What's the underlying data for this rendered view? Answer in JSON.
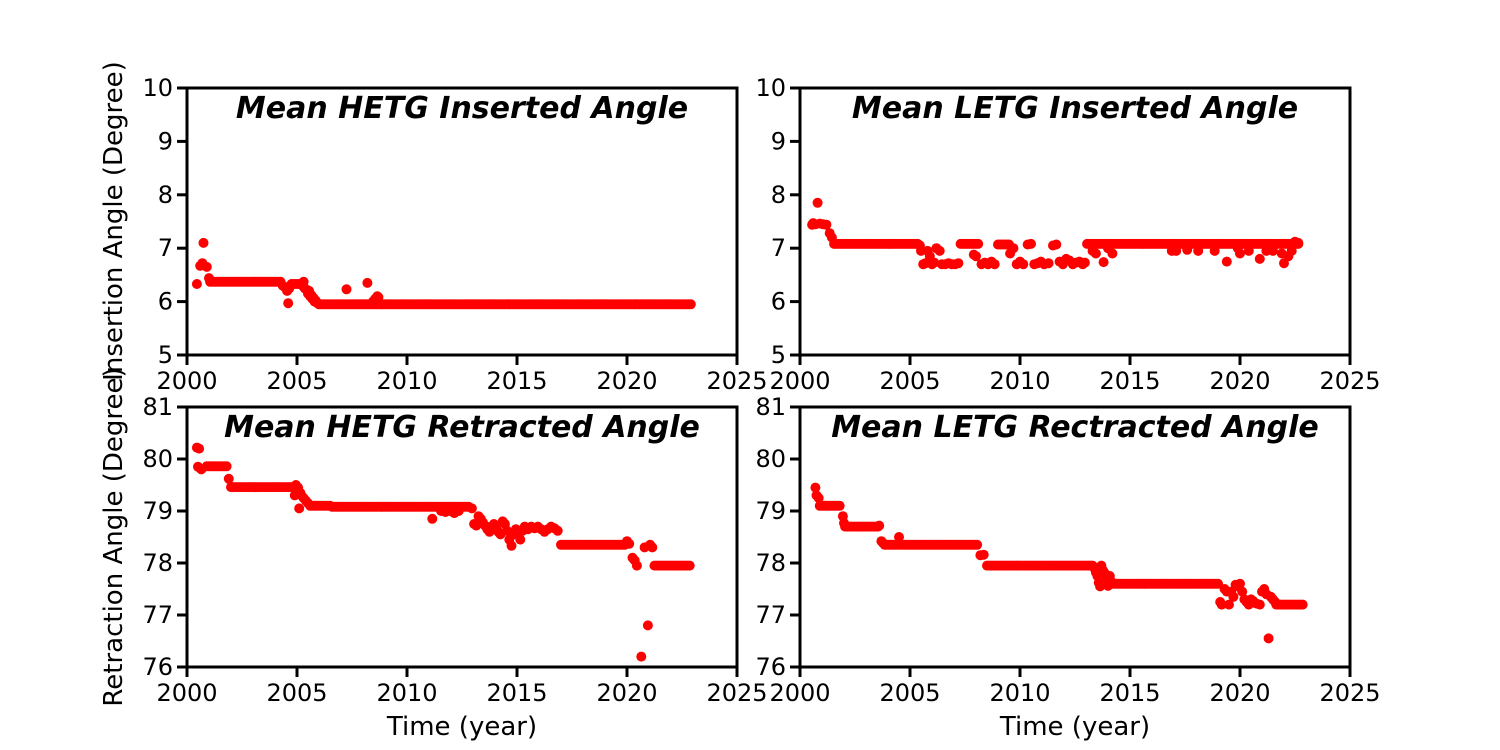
{
  "figure": {
    "background": "#ffffff",
    "axis_color": "#000000",
    "marker_color": "#ff0000",
    "runs_format": "[x_start, x_end, y] constant-y dense dot segments"
  },
  "chart_data": [
    {
      "id": "hetg-inserted",
      "type": "scatter",
      "title": "Mean HETG Inserted Angle",
      "xlabel": "",
      "ylabel": "Insertion Angle (Degree)",
      "xlim": [
        2000,
        2025
      ],
      "ylim": [
        5,
        10
      ],
      "xticks": [
        2000,
        2005,
        2010,
        2015,
        2020,
        2025
      ],
      "yticks": [
        5,
        6,
        7,
        8,
        9,
        10
      ],
      "grid": false,
      "marker": {
        "shape": "circle",
        "color": "#ff0000",
        "radius_px": 5
      },
      "series": {
        "name": "mean HETG inserted angle",
        "runs": [
          [
            2001.05,
            2004.25,
            6.37
          ],
          [
            2004.75,
            2005.2,
            6.33
          ],
          [
            2006.0,
            2022.9,
            5.95
          ]
        ],
        "points": [
          [
            2000.45,
            6.33
          ],
          [
            2000.6,
            6.67
          ],
          [
            2000.7,
            6.72
          ],
          [
            2000.75,
            7.1
          ],
          [
            2000.9,
            6.65
          ],
          [
            2001.0,
            6.44
          ],
          [
            2004.35,
            6.3
          ],
          [
            2004.45,
            6.27
          ],
          [
            2004.55,
            6.2
          ],
          [
            2004.6,
            5.97
          ],
          [
            2004.65,
            6.25
          ],
          [
            2005.25,
            6.3
          ],
          [
            2005.3,
            6.37
          ],
          [
            2005.35,
            6.25
          ],
          [
            2005.45,
            6.22
          ],
          [
            2005.5,
            6.15
          ],
          [
            2005.55,
            6.2
          ],
          [
            2005.6,
            6.1
          ],
          [
            2005.65,
            6.12
          ],
          [
            2005.7,
            6.05
          ],
          [
            2005.75,
            6.07
          ],
          [
            2005.8,
            6.0
          ],
          [
            2005.85,
            6.02
          ],
          [
            2005.9,
            5.98
          ],
          [
            2007.25,
            6.23
          ],
          [
            2008.2,
            6.35
          ],
          [
            2008.45,
            6.0
          ],
          [
            2008.55,
            6.05
          ],
          [
            2008.65,
            6.1
          ],
          [
            2008.7,
            6.08
          ]
        ]
      }
    },
    {
      "id": "letg-inserted",
      "type": "scatter",
      "title": "Mean LETG Inserted Angle",
      "xlabel": "",
      "ylabel": "",
      "xlim": [
        2000,
        2025
      ],
      "ylim": [
        5,
        10
      ],
      "xticks": [
        2000,
        2005,
        2010,
        2015,
        2020,
        2025
      ],
      "yticks": [
        5,
        6,
        7,
        8,
        9,
        10
      ],
      "grid": false,
      "marker": {
        "shape": "circle",
        "color": "#ff0000",
        "radius_px": 5
      },
      "series": {
        "name": "mean LETG inserted angle",
        "runs": [
          [
            2001.55,
            2005.35,
            7.08
          ],
          [
            2007.3,
            2008.15,
            7.08
          ],
          [
            2009.0,
            2009.5,
            7.07
          ],
          [
            2013.05,
            2022.7,
            7.08
          ]
        ],
        "points": [
          [
            2000.55,
            7.44
          ],
          [
            2000.6,
            7.47
          ],
          [
            2000.7,
            7.45
          ],
          [
            2000.8,
            7.85
          ],
          [
            2000.9,
            7.46
          ],
          [
            2001.05,
            7.45
          ],
          [
            2001.2,
            7.44
          ],
          [
            2001.35,
            7.28
          ],
          [
            2001.45,
            7.2
          ],
          [
            2005.45,
            7.05
          ],
          [
            2005.5,
            6.95
          ],
          [
            2005.6,
            6.7
          ],
          [
            2005.7,
            6.72
          ],
          [
            2005.8,
            6.95
          ],
          [
            2005.9,
            6.85
          ],
          [
            2006.0,
            6.7
          ],
          [
            2006.1,
            6.73
          ],
          [
            2006.2,
            7.0
          ],
          [
            2006.35,
            6.95
          ],
          [
            2006.45,
            6.7
          ],
          [
            2006.6,
            6.7
          ],
          [
            2006.75,
            6.72
          ],
          [
            2006.9,
            6.7
          ],
          [
            2007.05,
            6.7
          ],
          [
            2007.2,
            6.72
          ],
          [
            2007.9,
            6.88
          ],
          [
            2008.0,
            6.85
          ],
          [
            2008.25,
            6.7
          ],
          [
            2008.4,
            6.73
          ],
          [
            2008.55,
            6.7
          ],
          [
            2008.7,
            6.75
          ],
          [
            2008.85,
            6.7
          ],
          [
            2009.55,
            6.9
          ],
          [
            2009.7,
            7.0
          ],
          [
            2009.85,
            6.7
          ],
          [
            2010.0,
            6.75
          ],
          [
            2010.15,
            6.7
          ],
          [
            2010.35,
            7.07
          ],
          [
            2010.5,
            7.08
          ],
          [
            2010.65,
            6.7
          ],
          [
            2010.8,
            6.72
          ],
          [
            2010.95,
            6.75
          ],
          [
            2011.1,
            6.7
          ],
          [
            2011.3,
            6.72
          ],
          [
            2011.5,
            7.05
          ],
          [
            2011.65,
            7.07
          ],
          [
            2011.8,
            6.75
          ],
          [
            2011.95,
            6.7
          ],
          [
            2012.1,
            6.8
          ],
          [
            2012.25,
            6.77
          ],
          [
            2012.4,
            6.7
          ],
          [
            2012.55,
            6.73
          ],
          [
            2012.7,
            6.75
          ],
          [
            2012.85,
            6.7
          ],
          [
            2012.95,
            6.73
          ],
          [
            2013.3,
            6.95
          ],
          [
            2013.45,
            6.9
          ],
          [
            2013.8,
            6.74
          ],
          [
            2014.0,
            7.0
          ],
          [
            2014.2,
            6.9
          ],
          [
            2016.9,
            6.95
          ],
          [
            2017.1,
            6.95
          ],
          [
            2017.6,
            6.97
          ],
          [
            2018.1,
            6.95
          ],
          [
            2018.85,
            6.95
          ],
          [
            2019.4,
            6.75
          ],
          [
            2019.9,
            7.0
          ],
          [
            2020.0,
            6.9
          ],
          [
            2020.4,
            6.95
          ],
          [
            2020.9,
            6.8
          ],
          [
            2021.2,
            6.95
          ],
          [
            2021.5,
            6.95
          ],
          [
            2021.9,
            6.9
          ],
          [
            2022.0,
            6.72
          ],
          [
            2022.2,
            6.85
          ],
          [
            2022.35,
            6.95
          ],
          [
            2022.5,
            7.12
          ],
          [
            2022.65,
            7.1
          ]
        ]
      }
    },
    {
      "id": "hetg-retracted",
      "type": "scatter",
      "title": "Mean HETG Retracted Angle",
      "xlabel": "Time (year)",
      "ylabel": "Retraction Angle (Degree)",
      "xlim": [
        2000,
        2025
      ],
      "ylim": [
        76,
        81
      ],
      "xticks": [
        2000,
        2005,
        2010,
        2015,
        2020,
        2025
      ],
      "yticks": [
        76,
        77,
        78,
        79,
        80,
        81
      ],
      "grid": false,
      "marker": {
        "shape": "circle",
        "color": "#ff0000",
        "radius_px": 5
      },
      "series": {
        "name": "mean HETG retracted angle",
        "runs": [
          [
            2000.9,
            2001.85,
            79.86
          ],
          [
            2002.0,
            2004.85,
            79.46
          ],
          [
            2005.6,
            2006.55,
            79.1
          ],
          [
            2006.6,
            2012.85,
            79.08
          ],
          [
            2017.0,
            2019.9,
            78.35
          ],
          [
            2021.25,
            2022.9,
            77.95
          ]
        ],
        "points": [
          [
            2000.45,
            80.22
          ],
          [
            2000.55,
            80.2
          ],
          [
            2000.5,
            79.85
          ],
          [
            2000.65,
            79.8
          ],
          [
            2001.9,
            79.62
          ],
          [
            2004.9,
            79.3
          ],
          [
            2004.95,
            79.5
          ],
          [
            2005.05,
            79.45
          ],
          [
            2005.1,
            79.05
          ],
          [
            2005.15,
            79.35
          ],
          [
            2005.2,
            79.3
          ],
          [
            2005.3,
            79.25
          ],
          [
            2005.4,
            79.2
          ],
          [
            2005.5,
            79.15
          ],
          [
            2011.15,
            78.85
          ],
          [
            2011.55,
            79.0
          ],
          [
            2011.75,
            78.98
          ],
          [
            2011.95,
            79.0
          ],
          [
            2012.15,
            78.96
          ],
          [
            2012.35,
            79.0
          ],
          [
            2012.95,
            79.05
          ],
          [
            2013.05,
            78.75
          ],
          [
            2013.15,
            78.72
          ],
          [
            2013.25,
            78.9
          ],
          [
            2013.35,
            78.85
          ],
          [
            2013.45,
            78.78
          ],
          [
            2013.55,
            78.72
          ],
          [
            2013.65,
            78.65
          ],
          [
            2013.75,
            78.6
          ],
          [
            2013.85,
            78.7
          ],
          [
            2013.95,
            78.75
          ],
          [
            2014.05,
            78.68
          ],
          [
            2014.15,
            78.6
          ],
          [
            2014.25,
            78.55
          ],
          [
            2014.35,
            78.8
          ],
          [
            2014.45,
            78.75
          ],
          [
            2014.55,
            78.62
          ],
          [
            2014.65,
            78.45
          ],
          [
            2014.75,
            78.33
          ],
          [
            2014.85,
            78.55
          ],
          [
            2014.95,
            78.65
          ],
          [
            2015.05,
            78.6
          ],
          [
            2015.15,
            78.45
          ],
          [
            2015.25,
            78.62
          ],
          [
            2015.35,
            78.7
          ],
          [
            2015.5,
            78.65
          ],
          [
            2015.65,
            78.7
          ],
          [
            2015.8,
            78.67
          ],
          [
            2015.95,
            78.7
          ],
          [
            2016.1,
            78.65
          ],
          [
            2016.25,
            78.6
          ],
          [
            2016.4,
            78.65
          ],
          [
            2016.55,
            78.7
          ],
          [
            2016.7,
            78.67
          ],
          [
            2016.85,
            78.62
          ],
          [
            2020.0,
            78.42
          ],
          [
            2020.1,
            78.37
          ],
          [
            2020.25,
            78.1
          ],
          [
            2020.35,
            78.05
          ],
          [
            2020.45,
            77.95
          ],
          [
            2020.65,
            76.2
          ],
          [
            2020.8,
            78.3
          ],
          [
            2020.95,
            76.8
          ],
          [
            2021.05,
            78.35
          ],
          [
            2021.15,
            78.3
          ]
        ]
      }
    },
    {
      "id": "letg-rectracted",
      "type": "scatter",
      "title": "Mean LETG Rectracted Angle",
      "xlabel": "Time (year)",
      "ylabel": "",
      "xlim": [
        2000,
        2025
      ],
      "ylim": [
        76,
        81
      ],
      "xticks": [
        2000,
        2005,
        2010,
        2015,
        2020,
        2025
      ],
      "yticks": [
        76,
        77,
        78,
        79,
        80,
        81
      ],
      "grid": false,
      "marker": {
        "shape": "circle",
        "color": "#ff0000",
        "radius_px": 5
      },
      "series": {
        "name": "mean LETG retracted angle",
        "runs": [
          [
            2000.9,
            2001.85,
            79.1
          ],
          [
            2002.05,
            2003.55,
            78.7
          ],
          [
            2003.85,
            2008.1,
            78.35
          ],
          [
            2008.5,
            2013.3,
            77.95
          ],
          [
            2014.2,
            2019.05,
            77.6
          ],
          [
            2021.65,
            2022.9,
            77.2
          ]
        ],
        "points": [
          [
            2000.7,
            79.45
          ],
          [
            2000.75,
            79.3
          ],
          [
            2000.85,
            79.25
          ],
          [
            2001.95,
            78.9
          ],
          [
            2002.0,
            78.77
          ],
          [
            2003.6,
            78.72
          ],
          [
            2003.7,
            78.42
          ],
          [
            2003.78,
            78.38
          ],
          [
            2004.5,
            78.5
          ],
          [
            2008.2,
            78.15
          ],
          [
            2008.35,
            78.16
          ],
          [
            2013.38,
            77.9
          ],
          [
            2013.45,
            77.82
          ],
          [
            2013.52,
            77.75
          ],
          [
            2013.58,
            77.62
          ],
          [
            2013.64,
            77.55
          ],
          [
            2013.7,
            77.95
          ],
          [
            2013.78,
            77.85
          ],
          [
            2013.86,
            77.8
          ],
          [
            2013.94,
            77.7
          ],
          [
            2014.0,
            77.56
          ],
          [
            2014.08,
            77.75
          ],
          [
            2014.14,
            77.65
          ],
          [
            2019.1,
            77.25
          ],
          [
            2019.17,
            77.2
          ],
          [
            2019.3,
            77.5
          ],
          [
            2019.4,
            77.45
          ],
          [
            2019.5,
            77.2
          ],
          [
            2019.6,
            77.45
          ],
          [
            2019.7,
            77.35
          ],
          [
            2019.8,
            77.58
          ],
          [
            2019.9,
            77.55
          ],
          [
            2020.0,
            77.6
          ],
          [
            2020.1,
            77.45
          ],
          [
            2020.2,
            77.3
          ],
          [
            2020.3,
            77.25
          ],
          [
            2020.4,
            77.2
          ],
          [
            2020.5,
            77.3
          ],
          [
            2020.6,
            77.27
          ],
          [
            2020.75,
            77.22
          ],
          [
            2020.9,
            77.2
          ],
          [
            2021.0,
            77.45
          ],
          [
            2021.1,
            77.5
          ],
          [
            2021.2,
            77.4
          ],
          [
            2021.3,
            76.55
          ],
          [
            2021.4,
            77.35
          ],
          [
            2021.5,
            77.3
          ],
          [
            2021.6,
            77.25
          ]
        ]
      }
    }
  ]
}
